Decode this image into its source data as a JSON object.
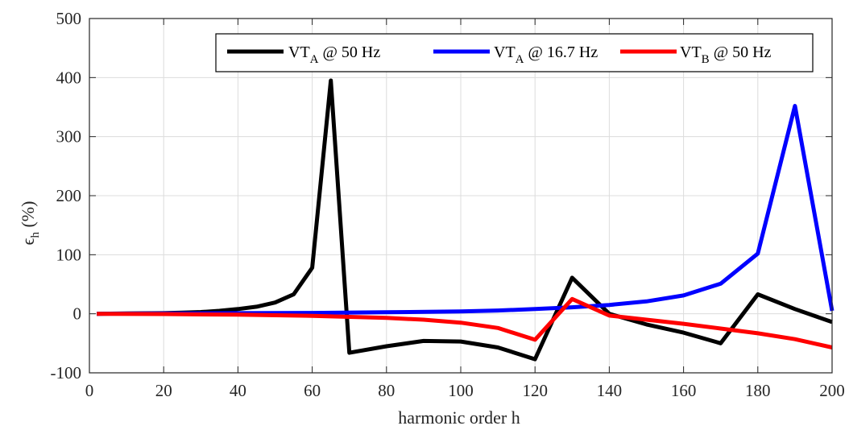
{
  "chart_data": {
    "type": "line",
    "xlabel": "harmonic order h",
    "ylabel": "ϵ",
    "ylabel_sub": "h",
    "ylabel_unit": " (%)",
    "xlim": [
      0,
      200
    ],
    "ylim": [
      -100,
      500
    ],
    "xticks": [
      0,
      20,
      40,
      60,
      80,
      100,
      120,
      140,
      160,
      180,
      200
    ],
    "yticks": [
      -100,
      0,
      100,
      200,
      300,
      400,
      500
    ],
    "xtick_labels": [
      "0",
      "20",
      "40",
      "60",
      "80",
      "100",
      "120",
      "140",
      "160",
      "180",
      "200"
    ],
    "ytick_labels": [
      "-100",
      "0",
      "100",
      "200",
      "300",
      "400",
      "500"
    ],
    "grid": true,
    "legend_position": "top-right",
    "series": [
      {
        "name": "VT_A @ 50 Hz",
        "legend_main": "VT",
        "legend_sub": "A",
        "legend_rest": " @ 50 Hz",
        "color": "#000000",
        "x": [
          2,
          10,
          20,
          25,
          30,
          35,
          40,
          45,
          50,
          55,
          60,
          65,
          70,
          80,
          90,
          100,
          110,
          120,
          130,
          140,
          150,
          160,
          170,
          180,
          190,
          200
        ],
        "y": [
          0,
          0.5,
          1,
          2,
          3,
          5,
          8,
          12,
          19,
          33,
          78,
          395,
          -66,
          -55,
          -46,
          -47,
          -57,
          -77,
          61,
          0,
          -18,
          -32,
          -50,
          33,
          8,
          -14
        ]
      },
      {
        "name": "VT_A @ 16.7 Hz",
        "legend_main": "VT",
        "legend_sub": "A",
        "legend_rest": " @ 16.7 Hz",
        "color": "#0000ff",
        "x": [
          2,
          20,
          40,
          60,
          80,
          100,
          110,
          120,
          130,
          140,
          150,
          160,
          170,
          180,
          190,
          200
        ],
        "y": [
          0,
          0.5,
          1,
          1.5,
          2.5,
          4,
          5.5,
          8,
          11,
          15,
          21,
          31,
          51,
          102,
          352,
          5
        ]
      },
      {
        "name": "VT_B @ 50 Hz",
        "legend_main": "VT",
        "legend_sub": "B",
        "legend_rest": " @ 50 Hz",
        "color": "#ff0000",
        "x": [
          2,
          20,
          40,
          60,
          80,
          90,
          100,
          110,
          120,
          130,
          140,
          150,
          160,
          170,
          180,
          190,
          200
        ],
        "y": [
          0,
          -0.5,
          -1.5,
          -3.5,
          -7,
          -10,
          -15,
          -24,
          -44,
          25,
          -3,
          -10,
          -17,
          -25,
          -33,
          -43,
          -57
        ]
      }
    ]
  }
}
